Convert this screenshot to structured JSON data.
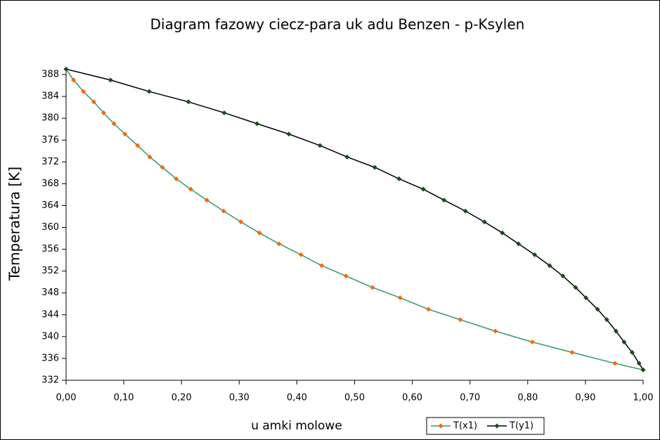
{
  "chart_data": {
    "type": "line",
    "title": "Diagram fazowy ciecz-para uk adu Benzen - p-Ksylen",
    "x_label": "u amki molowe",
    "y_label": "Temperatura [K]",
    "xlim": [
      0,
      1
    ],
    "ylim": [
      332,
      389.3
    ],
    "xticks": [
      {
        "value": 0,
        "label": "0,00"
      },
      {
        "value": 0.1,
        "label": "0,10"
      },
      {
        "value": 0.2,
        "label": "0,20"
      },
      {
        "value": 0.3,
        "label": "0,30"
      },
      {
        "value": 0.4,
        "label": "0,40"
      },
      {
        "value": 0.5,
        "label": "0,50"
      },
      {
        "value": 0.6,
        "label": "0,60"
      },
      {
        "value": 0.7,
        "label": "0,70"
      },
      {
        "value": 0.8,
        "label": "0,80"
      },
      {
        "value": 0.9,
        "label": "0,90"
      },
      {
        "value": 1,
        "label": "1,00"
      }
    ],
    "yticks": [
      332,
      336,
      340,
      344,
      348,
      352,
      356,
      360,
      364,
      368,
      372,
      376,
      380,
      384,
      388
    ],
    "grid": false,
    "legend": "bottom-right",
    "series": [
      {
        "name": "T(x1)",
        "color": "#339966",
        "marker_color": "#ff6600",
        "x": [
          0,
          0.013,
          0.03,
          0.048,
          0.065,
          0.083,
          0.102,
          0.124,
          0.145,
          0.167,
          0.191,
          0.216,
          0.244,
          0.273,
          0.303,
          0.335,
          0.369,
          0.407,
          0.443,
          0.485,
          0.531,
          0.579,
          0.628,
          0.683,
          0.744,
          0.808,
          0.877,
          0.951,
          1.0
        ],
        "values": [
          389.0,
          387.0,
          384.9,
          383.0,
          381.0,
          379.0,
          377.1,
          375.0,
          372.9,
          371.0,
          368.9,
          367.0,
          365.0,
          363.0,
          361.0,
          359.0,
          357.0,
          355.0,
          353.0,
          351.1,
          349.0,
          347.1,
          345.0,
          343.1,
          341.0,
          339.0,
          337.1,
          335.1,
          333.9
        ]
      },
      {
        "name": "T(y1)",
        "color": "#000000",
        "marker_color": "#1a4d1a",
        "x": [
          0,
          0.077,
          0.144,
          0.212,
          0.274,
          0.331,
          0.386,
          0.44,
          0.487,
          0.535,
          0.577,
          0.619,
          0.655,
          0.692,
          0.725,
          0.756,
          0.784,
          0.812,
          0.838,
          0.861,
          0.883,
          0.901,
          0.921,
          0.937,
          0.953,
          0.967,
          0.981,
          0.993,
          1.0
        ],
        "values": [
          389.0,
          387.0,
          384.9,
          383.0,
          381.0,
          379.0,
          377.1,
          375.0,
          372.9,
          371.0,
          368.9,
          367.0,
          365.0,
          363.0,
          361.0,
          359.0,
          357.0,
          355.0,
          353.0,
          351.1,
          349.0,
          347.1,
          345.0,
          343.1,
          341.0,
          339.0,
          337.1,
          335.1,
          333.9
        ]
      }
    ]
  }
}
